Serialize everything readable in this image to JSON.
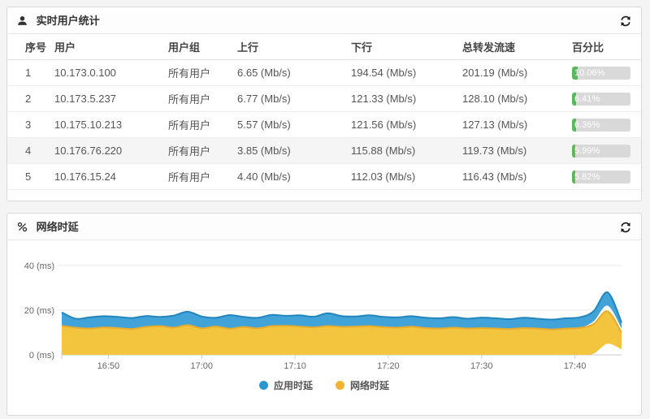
{
  "panels": {
    "users": {
      "title": "实时用户统计",
      "title_icon": "user-icon",
      "refresh_icon": "refresh-icon",
      "columns": [
        "序号",
        "用户",
        "用户组",
        "上行",
        "下行",
        "总转发流速",
        "百分比"
      ],
      "rows": [
        {
          "index": "1",
          "user": "10.173.0.100",
          "group": "所有用户",
          "up": "6.65 (Mb/s)",
          "down": "194.54 (Mb/s)",
          "total": "201.19 (Mb/s)",
          "percent": "10.06%",
          "percent_value": 10.06,
          "highlighted": false
        },
        {
          "index": "2",
          "user": "10.173.5.237",
          "group": "所有用户",
          "up": "6.77 (Mb/s)",
          "down": "121.33 (Mb/s)",
          "total": "128.10 (Mb/s)",
          "percent": "6.41%",
          "percent_value": 6.41,
          "highlighted": false
        },
        {
          "index": "3",
          "user": "10.175.10.213",
          "group": "所有用户",
          "up": "5.57 (Mb/s)",
          "down": "121.56 (Mb/s)",
          "total": "127.13 (Mb/s)",
          "percent": "6.36%",
          "percent_value": 6.36,
          "highlighted": false
        },
        {
          "index": "4",
          "user": "10.176.76.220",
          "group": "所有用户",
          "up": "3.85 (Mb/s)",
          "down": "115.88 (Mb/s)",
          "total": "119.73 (Mb/s)",
          "percent": "5.99%",
          "percent_value": 5.99,
          "highlighted": true
        },
        {
          "index": "5",
          "user": "10.176.15.24",
          "group": "所有用户",
          "up": "4.40 (Mb/s)",
          "down": "112.03 (Mb/s)",
          "total": "116.43 (Mb/s)",
          "percent": "5.82%",
          "percent_value": 5.82,
          "highlighted": false
        }
      ],
      "bar_colors": {
        "fill": "#5cb85c",
        "track": "#d9d9d9"
      }
    },
    "latency": {
      "title": "网络时延",
      "title_icon": "link-icon",
      "refresh_icon": "refresh-icon",
      "legend": [
        {
          "label": "应用时延",
          "color": "#2b97cf"
        },
        {
          "label": "网络时延",
          "color": "#f2b32e"
        }
      ]
    }
  },
  "chart_data": {
    "type": "area",
    "title": "网络时延",
    "xlabel": "",
    "ylabel": "(ms)",
    "ylabel_unit": "(ms)",
    "ylim": [
      0,
      44
    ],
    "y_ticks": [
      0,
      20,
      40
    ],
    "grid": true,
    "legend_position": "bottom",
    "x_range": [
      "16:45",
      "17:45"
    ],
    "x_tick_labels": [
      "16:50",
      "17:00",
      "17:10",
      "17:20",
      "17:30",
      "17:40"
    ],
    "x_tick_minutes": [
      5,
      15,
      25,
      35,
      45,
      55
    ],
    "x_minutes": [
      0,
      1.5,
      3,
      4.5,
      6,
      7.5,
      9,
      10.5,
      12,
      13.5,
      15,
      16.5,
      18,
      19.5,
      21,
      22.5,
      24,
      25.5,
      27,
      28.5,
      30,
      31.5,
      33,
      34.5,
      36,
      37.5,
      39,
      40.5,
      42,
      43.5,
      45,
      46.5,
      48,
      49.5,
      51,
      52.5,
      54,
      55.5,
      57,
      58.5,
      60
    ],
    "series": [
      {
        "name": "应用时延",
        "color": "#41a3d7",
        "stroke": "#2186be",
        "values": [
          19.0,
          16.2,
          16.8,
          17.3,
          17.0,
          16.5,
          17.4,
          17.0,
          17.6,
          19.3,
          17.2,
          16.6,
          17.8,
          17.0,
          16.6,
          17.9,
          17.5,
          17.7,
          17.1,
          18.6,
          17.4,
          17.2,
          17.7,
          17.0,
          16.8,
          17.3,
          16.6,
          16.4,
          16.9,
          16.2,
          16.7,
          16.4,
          16.0,
          16.6,
          16.2,
          15.8,
          16.4,
          16.8,
          19.5,
          28.0,
          14.5
        ],
        "lower": [
          13.0,
          12.2,
          11.8,
          12.3,
          12.0,
          11.6,
          12.5,
          12.9,
          12.2,
          13.3,
          11.9,
          12.7,
          11.7,
          12.5,
          11.9,
          12.9,
          13.0,
          12.7,
          12.3,
          12.9,
          12.5,
          12.7,
          12.9,
          12.4,
          12.2,
          12.6,
          12.0,
          11.8,
          12.2,
          11.8,
          12.0,
          11.8,
          11.6,
          12.0,
          11.8,
          11.4,
          11.8,
          12.1,
          15.0,
          22.0,
          11.8
        ]
      },
      {
        "name": "网络时延",
        "color": "#f3c43e",
        "stroke": "#e8ab2d",
        "values": [
          13.0,
          12.2,
          11.8,
          12.3,
          12.0,
          11.6,
          12.5,
          12.9,
          12.2,
          13.3,
          11.9,
          12.7,
          11.7,
          12.5,
          11.9,
          12.9,
          13.0,
          12.7,
          12.3,
          12.9,
          12.5,
          12.7,
          12.9,
          12.4,
          12.2,
          12.6,
          12.0,
          11.8,
          12.2,
          11.8,
          12.0,
          11.8,
          11.6,
          12.0,
          11.8,
          11.4,
          11.8,
          12.1,
          13.8,
          19.5,
          10.0
        ],
        "lower": [
          0,
          0,
          0,
          0,
          0,
          0,
          0,
          0,
          0,
          0,
          0,
          0,
          0,
          0,
          0,
          0,
          0,
          0,
          0,
          0,
          0,
          0,
          0,
          0,
          0,
          0,
          0,
          0,
          0,
          0,
          0,
          0,
          0,
          0,
          0,
          0,
          0,
          0,
          0.5,
          5.0,
          2.5
        ]
      }
    ]
  }
}
